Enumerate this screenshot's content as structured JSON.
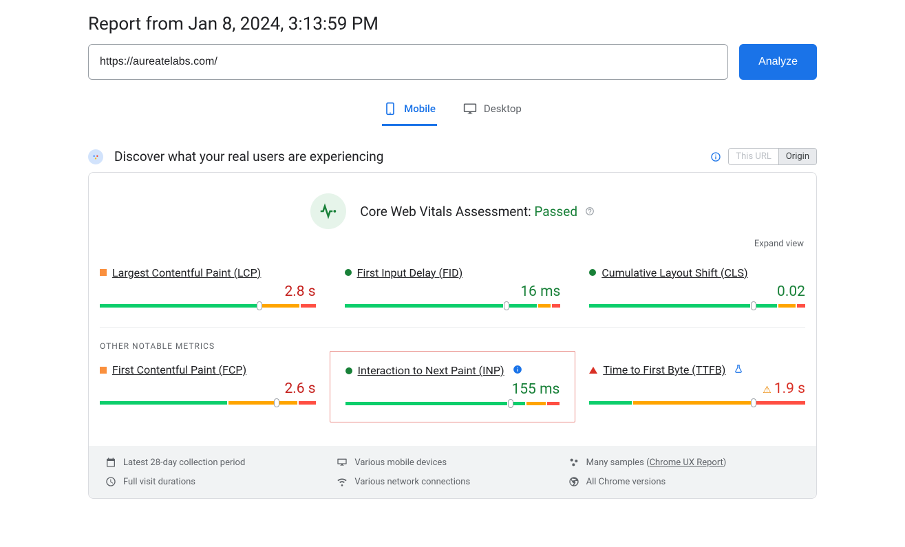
{
  "title": "Report from Jan 8, 2024, 3:13:59 PM",
  "url_input": "https://aureatelabs.com/",
  "analyze_btn": "Analyze",
  "tabs": {
    "mobile": "Mobile",
    "desktop": "Desktop",
    "active": "mobile"
  },
  "discover_text": "Discover what your real users are experiencing",
  "toggle": {
    "this_url": "This URL",
    "origin": "Origin"
  },
  "assessment": {
    "label": "Core Web Vitals Assessment:",
    "status": "Passed"
  },
  "expand_view": "Expand view",
  "colors": {
    "good": "#188038",
    "good_bar": "#0cce6b",
    "warn_bar": "#ffa400",
    "bad_bar": "#ff4e42",
    "text_warn": "#c5221f",
    "text_good": "#188038",
    "text_bad": "#d93025"
  },
  "metrics_top": [
    {
      "name": "Largest Contentful Paint (LCP)",
      "status": "warn",
      "value": "2.8 s",
      "value_class": "val-warn",
      "segments": [
        {
          "color": "#0cce6b",
          "pct": 74
        },
        {
          "color": "#ffa400",
          "pct": 19
        },
        {
          "color": "#ff4e42",
          "pct": 7
        }
      ],
      "marker_pct": 74,
      "extra_icon": null,
      "highlight": false
    },
    {
      "name": "First Input Delay (FID)",
      "status": "good",
      "value": "16 ms",
      "value_class": "val-good",
      "segments": [
        {
          "color": "#0cce6b",
          "pct": 75
        },
        {
          "color": "#0cce6b",
          "pct": 15
        },
        {
          "color": "#ffa400",
          "pct": 6
        },
        {
          "color": "#ff4e42",
          "pct": 4
        }
      ],
      "marker_pct": 75,
      "extra_icon": null,
      "highlight": false
    },
    {
      "name": "Cumulative Layout Shift (CLS)",
      "status": "good",
      "value": "0.02",
      "value_class": "val-good",
      "segments": [
        {
          "color": "#0cce6b",
          "pct": 76
        },
        {
          "color": "#0cce6b",
          "pct": 12
        },
        {
          "color": "#ffa400",
          "pct": 8
        },
        {
          "color": "#ff4e42",
          "pct": 4
        }
      ],
      "marker_pct": 76,
      "extra_icon": null,
      "highlight": false
    }
  ],
  "other_label": "OTHER NOTABLE METRICS",
  "metrics_bottom": [
    {
      "name": "First Contentful Paint (FCP)",
      "status": "warn",
      "value": "2.6 s",
      "value_class": "val-warn",
      "segments": [
        {
          "color": "#0cce6b",
          "pct": 60
        },
        {
          "color": "#ffa400",
          "pct": 22
        },
        {
          "color": "#ffa400",
          "pct": 10
        },
        {
          "color": "#ff4e42",
          "pct": 8
        }
      ],
      "marker_pct": 82,
      "extra_icon": null,
      "highlight": false
    },
    {
      "name": "Interaction to Next Paint (INP)",
      "status": "good",
      "value": "155 ms",
      "value_class": "val-good",
      "segments": [
        {
          "color": "#0cce6b",
          "pct": 77
        },
        {
          "color": "#0cce6b",
          "pct": 8
        },
        {
          "color": "#ffa400",
          "pct": 9
        },
        {
          "color": "#ff4e42",
          "pct": 6
        }
      ],
      "marker_pct": 77,
      "extra_icon": "info",
      "highlight": true
    },
    {
      "name": "Time to First Byte (TTFB)",
      "status": "bad",
      "value": "1.9 s",
      "value_class": "val-bad",
      "value_prefix_icon": "warn",
      "segments": [
        {
          "color": "#0cce6b",
          "pct": 20
        },
        {
          "color": "#ffa400",
          "pct": 56
        },
        {
          "color": "#ff4e42",
          "pct": 24
        }
      ],
      "marker_pct": 76,
      "extra_icon": "flask",
      "highlight": false
    }
  ],
  "footer": {
    "period": "Latest 28-day collection period",
    "devices": "Various mobile devices",
    "samples_pre": "Many samples (",
    "samples_link": "Chrome UX Report",
    "samples_post": ")",
    "durations": "Full visit durations",
    "network": "Various network connections",
    "versions": "All Chrome versions"
  }
}
